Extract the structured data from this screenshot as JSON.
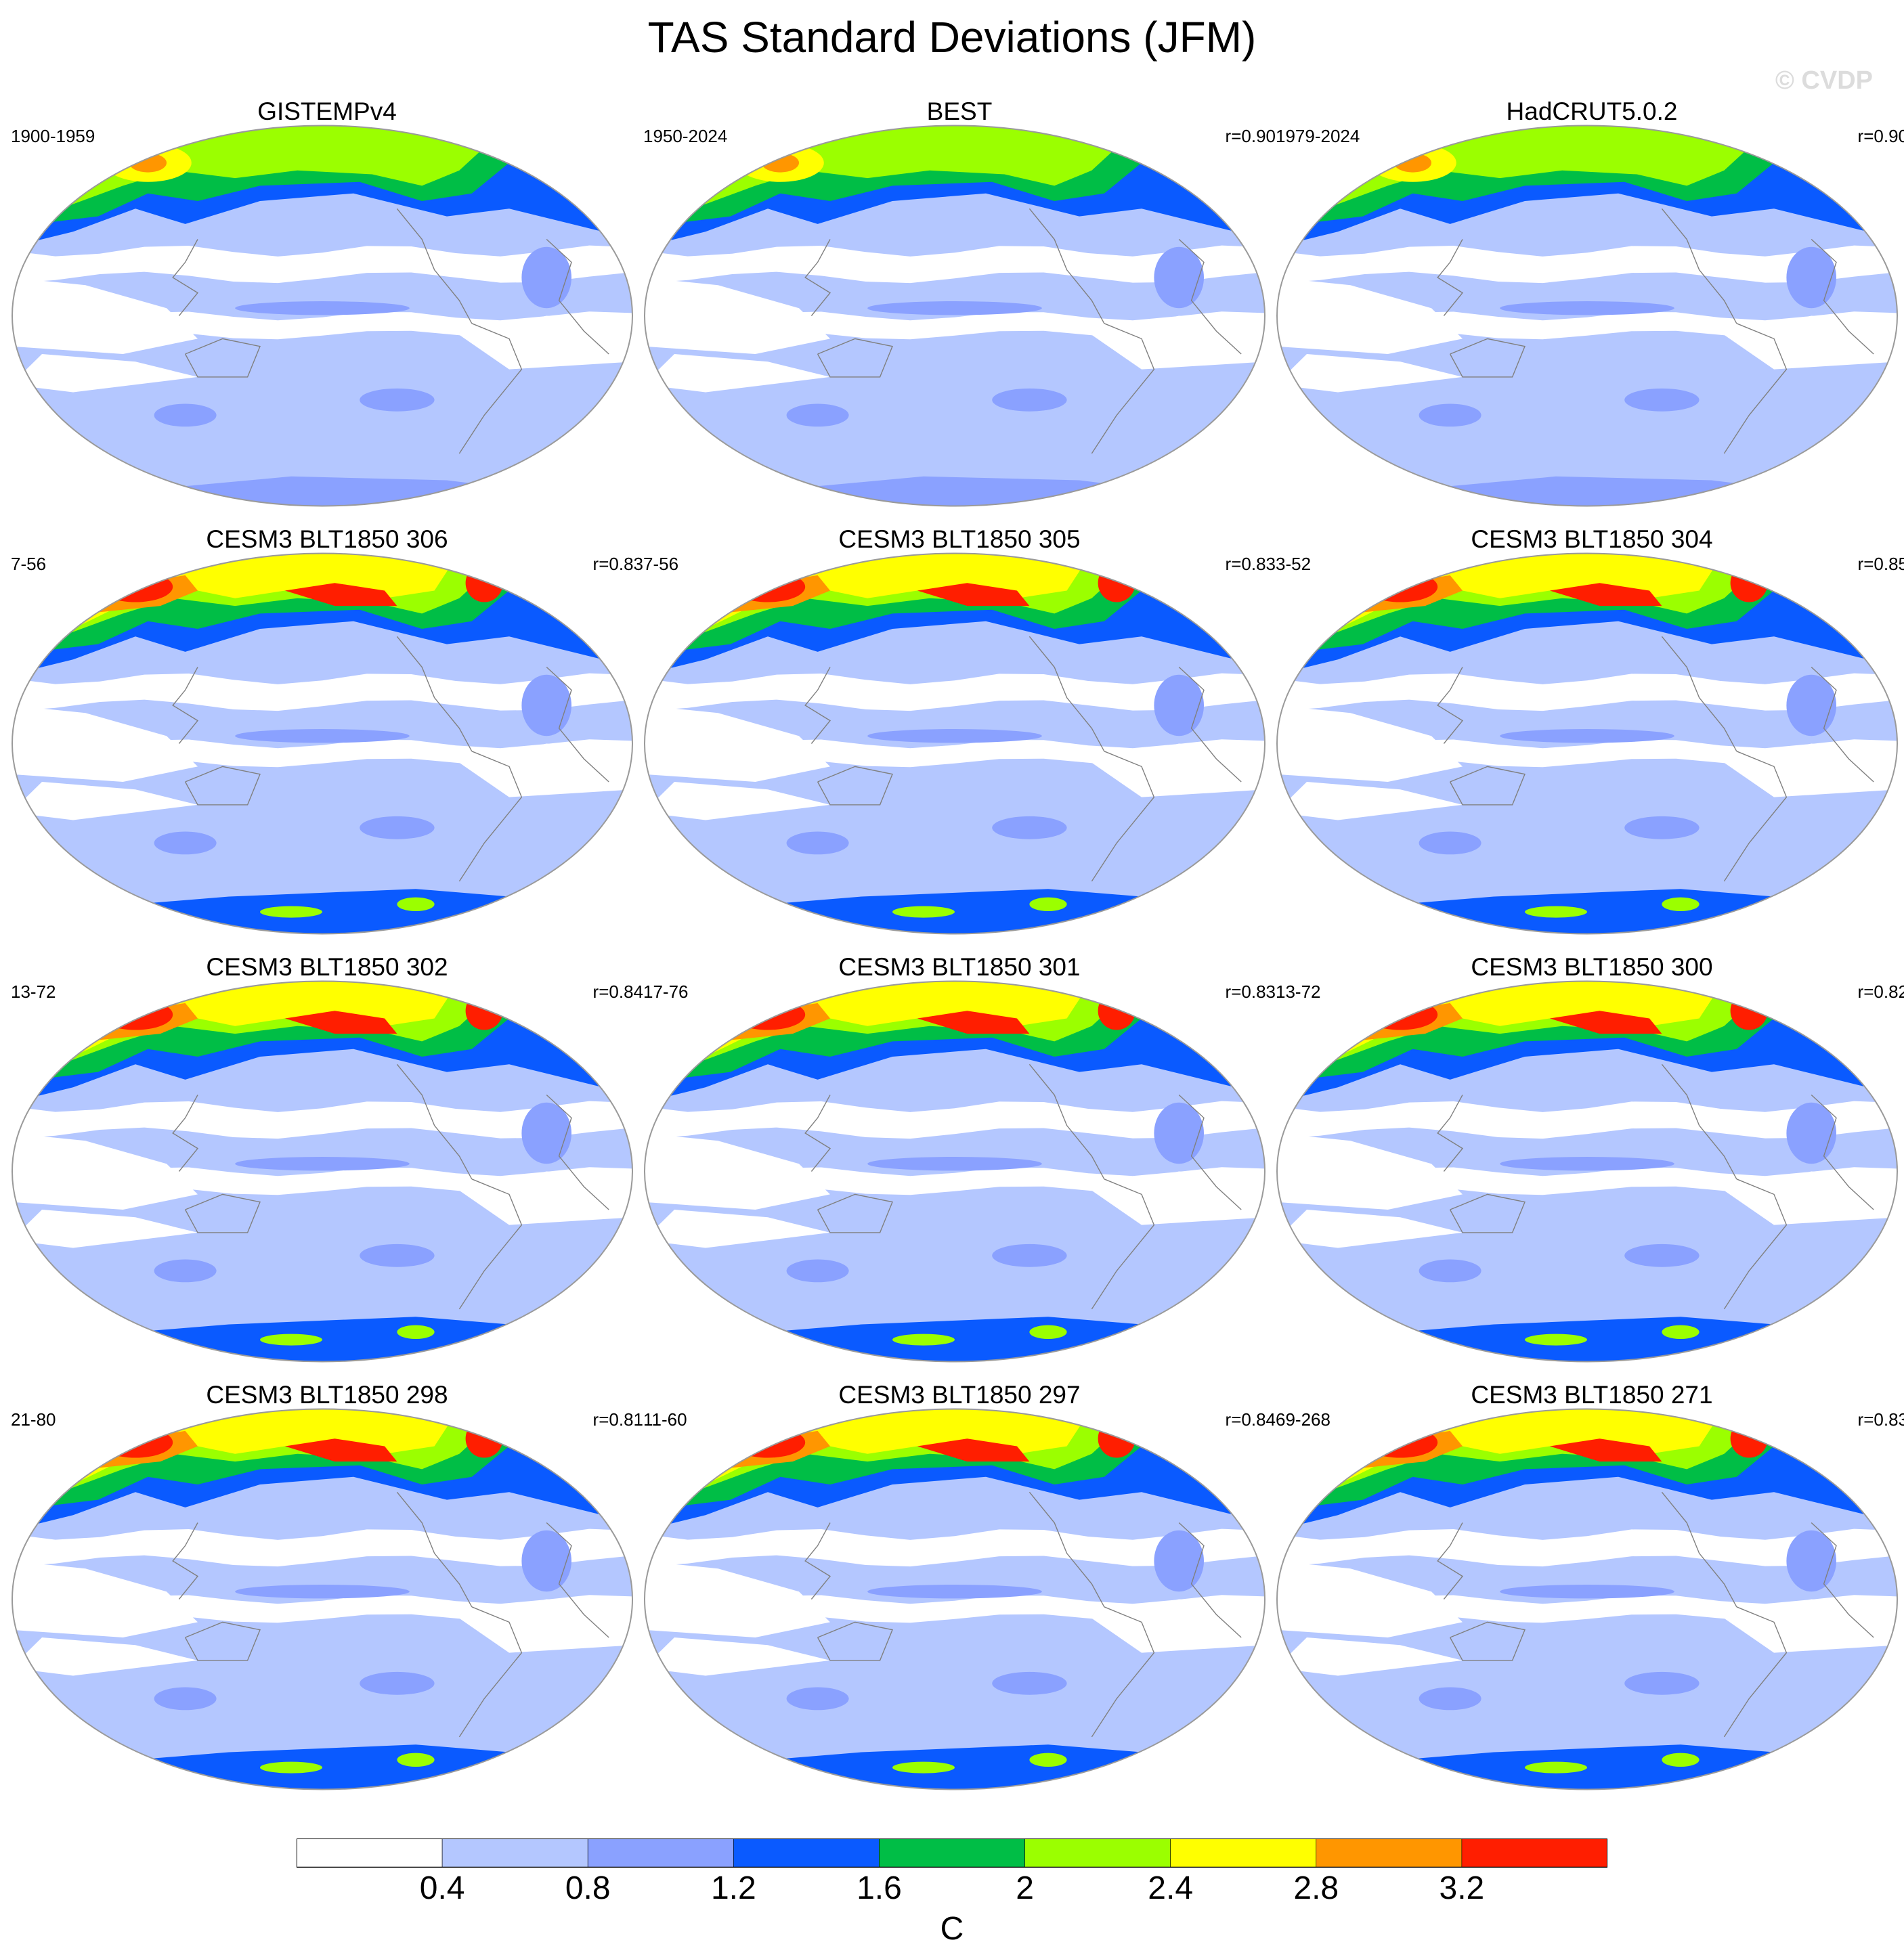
{
  "title": "TAS Standard Deviations (JFM)",
  "watermark": "© CVDP",
  "colors": {
    "levels": [
      "#ffffff",
      "#b4c7ff",
      "#8aa1ff",
      "#0a5aff",
      "#00be46",
      "#9bff00",
      "#ffff00",
      "#ff9600",
      "#ff1e00"
    ],
    "coastline": "#808080",
    "map_border": "#9a9a9a"
  },
  "panels": [
    {
      "title": "GISTEMPv4",
      "years": "1900-1959",
      "r": "",
      "kind": "obs"
    },
    {
      "title": "BEST",
      "years": "1950-2024",
      "r": "r=0.90",
      "kind": "obs"
    },
    {
      "title": "HadCRUT5.0.2",
      "years": "1979-2024",
      "r": "r=0.90",
      "kind": "obs"
    },
    {
      "title": "CESM3 BLT1850 306",
      "years": "7-56",
      "r": "r=0.83",
      "kind": "model"
    },
    {
      "title": "CESM3 BLT1850 305",
      "years": "7-56",
      "r": "r=0.83",
      "kind": "model"
    },
    {
      "title": "CESM3 BLT1850 304",
      "years": "3-52",
      "r": "r=0.85",
      "kind": "model"
    },
    {
      "title": "CESM3 BLT1850 302",
      "years": "13-72",
      "r": "r=0.84",
      "kind": "model"
    },
    {
      "title": "CESM3 BLT1850 301",
      "years": "17-76",
      "r": "r=0.83",
      "kind": "model"
    },
    {
      "title": "CESM3 BLT1850 300",
      "years": "13-72",
      "r": "r=0.82",
      "kind": "model"
    },
    {
      "title": "CESM3 BLT1850 298",
      "years": "21-80",
      "r": "r=0.81",
      "kind": "model"
    },
    {
      "title": "CESM3 BLT1850 297",
      "years": "11-60",
      "r": "r=0.84",
      "kind": "model"
    },
    {
      "title": "CESM3 BLT1850 271",
      "years": "69-268",
      "r": "r=0.83",
      "kind": "model"
    }
  ],
  "colorbar": {
    "labels": [
      "0.4",
      "0.8",
      "1.2",
      "1.6",
      "2",
      "2.4",
      "2.8",
      "3.2"
    ],
    "units": "C"
  }
}
